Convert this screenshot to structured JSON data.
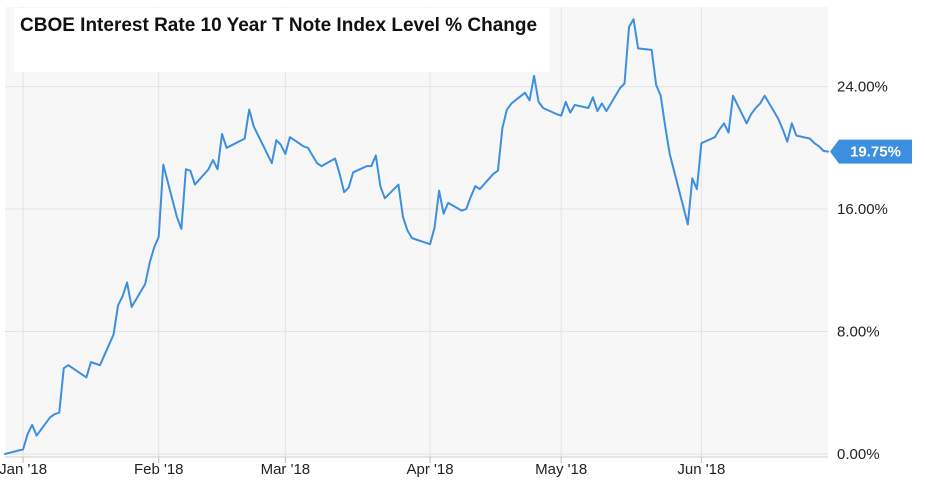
{
  "chart_data": {
    "type": "line",
    "title": "CBOE Interest Rate 10 Year T Note Index Level % Change",
    "xlabel": "",
    "ylabel": "",
    "unit": "%",
    "ylim": [
      -0.2,
      29.2
    ],
    "yticks": [
      {
        "value": 0,
        "label": "0.00%"
      },
      {
        "value": 8,
        "label": "8.00%"
      },
      {
        "value": 16,
        "label": "16.00%"
      },
      {
        "value": 24,
        "label": "24.00%"
      }
    ],
    "xticks": [
      {
        "x": "2018-01-02",
        "label": "Jan '18"
      },
      {
        "x": "2018-02-01",
        "label": "Feb '18"
      },
      {
        "x": "2018-03-01",
        "label": "Mar '18"
      },
      {
        "x": "2018-04-02",
        "label": "Apr '18"
      },
      {
        "x": "2018-05-01",
        "label": "May '18"
      },
      {
        "x": "2018-06-01",
        "label": "Jun '18"
      }
    ],
    "xlim": [
      "2017-12-29",
      "2018-06-29"
    ],
    "grid": true,
    "last_value_label": "19.75%",
    "colors": {
      "line": "#3d8fe0",
      "badge": "#3d8fe0",
      "plot_bg": "#f7f7f7",
      "grid": "#e3e3e3"
    },
    "series": [
      {
        "x": [
          "2017-12-29",
          "2018-01-02",
          "2018-01-03",
          "2018-01-04",
          "2018-01-05",
          "2018-01-08",
          "2018-01-09",
          "2018-01-10",
          "2018-01-11",
          "2018-01-12",
          "2018-01-16",
          "2018-01-17",
          "2018-01-18",
          "2018-01-19",
          "2018-01-22",
          "2018-01-23",
          "2018-01-24",
          "2018-01-25",
          "2018-01-26",
          "2018-01-29",
          "2018-01-30",
          "2018-01-31",
          "2018-02-01",
          "2018-02-02",
          "2018-02-05",
          "2018-02-06",
          "2018-02-07",
          "2018-02-08",
          "2018-02-09",
          "2018-02-12",
          "2018-02-13",
          "2018-02-14",
          "2018-02-15",
          "2018-02-16",
          "2018-02-20",
          "2018-02-21",
          "2018-02-22",
          "2018-02-23",
          "2018-02-26",
          "2018-02-27",
          "2018-02-28",
          "2018-03-01",
          "2018-03-02",
          "2018-03-05",
          "2018-03-06",
          "2018-03-07",
          "2018-03-08",
          "2018-03-09",
          "2018-03-12",
          "2018-03-13",
          "2018-03-14",
          "2018-03-15",
          "2018-03-16",
          "2018-03-19",
          "2018-03-20",
          "2018-03-21",
          "2018-03-22",
          "2018-03-23",
          "2018-03-26",
          "2018-03-27",
          "2018-03-28",
          "2018-03-29",
          "2018-04-02",
          "2018-04-03",
          "2018-04-04",
          "2018-04-05",
          "2018-04-06",
          "2018-04-09",
          "2018-04-10",
          "2018-04-11",
          "2018-04-12",
          "2018-04-13",
          "2018-04-16",
          "2018-04-17",
          "2018-04-18",
          "2018-04-19",
          "2018-04-20",
          "2018-04-23",
          "2018-04-24",
          "2018-04-25",
          "2018-04-26",
          "2018-04-27",
          "2018-04-30",
          "2018-05-01",
          "2018-05-02",
          "2018-05-03",
          "2018-05-04",
          "2018-05-07",
          "2018-05-08",
          "2018-05-09",
          "2018-05-10",
          "2018-05-11",
          "2018-05-14",
          "2018-05-15",
          "2018-05-16",
          "2018-05-17",
          "2018-05-18",
          "2018-05-21",
          "2018-05-22",
          "2018-05-23",
          "2018-05-24",
          "2018-05-25",
          "2018-05-29",
          "2018-05-30",
          "2018-05-31",
          "2018-06-01",
          "2018-06-04",
          "2018-06-05",
          "2018-06-06",
          "2018-06-07",
          "2018-06-08",
          "2018-06-11",
          "2018-06-12",
          "2018-06-13",
          "2018-06-14",
          "2018-06-15",
          "2018-06-18",
          "2018-06-19",
          "2018-06-20",
          "2018-06-21",
          "2018-06-22",
          "2018-06-25",
          "2018-06-26",
          "2018-06-27",
          "2018-06-28",
          "2018-06-29"
        ],
        "values": [
          0.0,
          0.3,
          1.3,
          1.9,
          1.2,
          2.4,
          2.6,
          2.7,
          5.6,
          5.8,
          5.0,
          6.0,
          5.9,
          5.8,
          7.8,
          9.7,
          10.3,
          11.2,
          9.6,
          11.1,
          12.5,
          13.5,
          14.2,
          18.9,
          15.5,
          14.7,
          18.6,
          18.5,
          17.6,
          18.6,
          19.2,
          18.6,
          20.9,
          20.0,
          20.6,
          22.5,
          21.4,
          20.8,
          19.0,
          20.5,
          20.2,
          19.6,
          20.7,
          20.1,
          20.0,
          19.5,
          19.0,
          18.8,
          19.3,
          18.3,
          17.1,
          17.4,
          18.4,
          18.8,
          18.8,
          19.5,
          17.5,
          16.7,
          17.6,
          15.5,
          14.6,
          14.1,
          13.7,
          14.8,
          17.2,
          15.7,
          16.4,
          15.9,
          16.0,
          16.8,
          17.5,
          17.3,
          18.3,
          18.5,
          21.3,
          22.5,
          22.9,
          23.6,
          23.1,
          24.7,
          23.0,
          22.6,
          22.2,
          22.1,
          23.0,
          22.3,
          22.8,
          22.6,
          23.3,
          22.4,
          22.9,
          22.4,
          23.9,
          24.2,
          27.9,
          28.4,
          26.5,
          26.4,
          24.1,
          23.4,
          21.4,
          19.6,
          15.0,
          18.0,
          17.3,
          20.3,
          20.7,
          21.2,
          21.6,
          21.0,
          23.4,
          21.6,
          22.2,
          22.6,
          22.9,
          23.4,
          21.9,
          21.2,
          20.4,
          21.6,
          20.8,
          20.6,
          20.3,
          20.1,
          19.8,
          19.75
        ]
      }
    ]
  }
}
